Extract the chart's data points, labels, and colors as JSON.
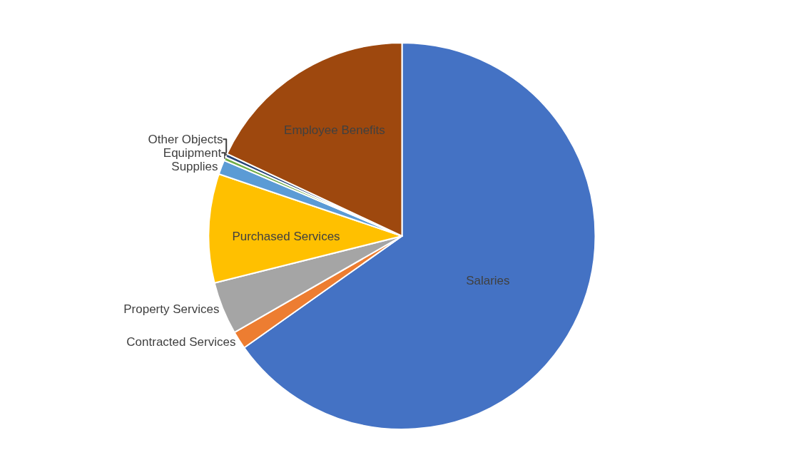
{
  "chart_data": {
    "type": "pie",
    "categories": [
      "Salaries",
      "Contracted Services",
      "Property Services",
      "Purchased Services",
      "Supplies",
      "Equipment",
      "Other Objects",
      "Employee Benefits"
    ],
    "values": [
      65.2,
      1.5,
      4.4,
      9.1,
      1.2,
      0.3,
      0.3,
      18.0
    ],
    "colors": [
      "#4472c4",
      "#ed7d31",
      "#a5a5a5",
      "#ffc000",
      "#5b9bd5",
      "#70ad47",
      "#264478",
      "#9e480e"
    ],
    "legend": false
  }
}
